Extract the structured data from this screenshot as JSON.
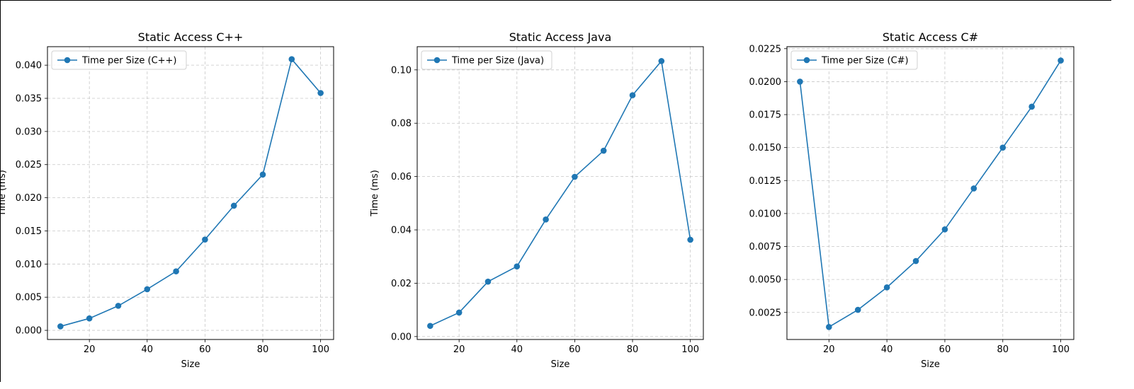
{
  "chart_data": [
    {
      "type": "line",
      "title": "Static Access C++",
      "xlabel": "Size",
      "ylabel": "Time (ms)",
      "xlim": [
        5.5,
        104.5
      ],
      "ylim": [
        -0.00138,
        0.04279
      ],
      "xticks": [
        20,
        40,
        60,
        80,
        100
      ],
      "yticks": [
        0.0,
        0.005,
        0.01,
        0.015,
        0.02,
        0.025,
        0.03,
        0.035,
        0.04
      ],
      "ytick_labels": [
        "0.000",
        "0.005",
        "0.010",
        "0.015",
        "0.020",
        "0.025",
        "0.030",
        "0.035",
        "0.040"
      ],
      "grid": true,
      "legend": "upper left",
      "color": "#1f77b4",
      "series": [
        {
          "name": "Time per Size (C++)",
          "x": [
            10,
            20,
            30,
            40,
            50,
            60,
            70,
            80,
            90,
            100
          ],
          "y": [
            0.0006,
            0.0018,
            0.0037,
            0.0062,
            0.0089,
            0.0137,
            0.0188,
            0.0235,
            0.0409,
            0.0358
          ]
        }
      ]
    },
    {
      "type": "line",
      "title": "Static Access Java",
      "xlabel": "Size",
      "ylabel": "Time (ms)",
      "xlim": [
        5.5,
        104.5
      ],
      "ylim": [
        -0.0011,
        0.1087
      ],
      "xticks": [
        20,
        40,
        60,
        80,
        100
      ],
      "yticks": [
        0.0,
        0.02,
        0.04,
        0.06,
        0.08,
        0.1
      ],
      "ytick_labels": [
        "0.00",
        "0.02",
        "0.04",
        "0.06",
        "0.08",
        "0.10"
      ],
      "grid": true,
      "legend": "upper left",
      "color": "#1f77b4",
      "series": [
        {
          "name": "Time per Size (Java)",
          "x": [
            10,
            20,
            30,
            40,
            50,
            60,
            70,
            80,
            90,
            100
          ],
          "y": [
            0.004,
            0.009,
            0.0206,
            0.0263,
            0.0439,
            0.0599,
            0.0697,
            0.0905,
            0.1033,
            0.0363
          ]
        }
      ]
    },
    {
      "type": "line",
      "title": "Static Access C#",
      "xlabel": "Size",
      "ylabel": "",
      "xlim": [
        5.5,
        104.5
      ],
      "ylim": [
        0.00045,
        0.02265
      ],
      "xticks": [
        20,
        40,
        60,
        80,
        100
      ],
      "yticks": [
        0.0025,
        0.005,
        0.0075,
        0.01,
        0.0125,
        0.015,
        0.0175,
        0.02,
        0.0225
      ],
      "ytick_labels": [
        "0.0025",
        "0.0050",
        "0.0075",
        "0.0100",
        "0.0125",
        "0.0150",
        "0.0175",
        "0.0200",
        "0.0225"
      ],
      "grid": true,
      "legend": "upper left",
      "color": "#1f77b4",
      "series": [
        {
          "name": "Time per Size (C#)",
          "x": [
            10,
            20,
            30,
            40,
            50,
            60,
            70,
            80,
            90,
            100
          ],
          "y": [
            0.02,
            0.0014,
            0.0027,
            0.0044,
            0.0064,
            0.0088,
            0.0119,
            0.015,
            0.0181,
            0.0216
          ]
        }
      ]
    }
  ]
}
